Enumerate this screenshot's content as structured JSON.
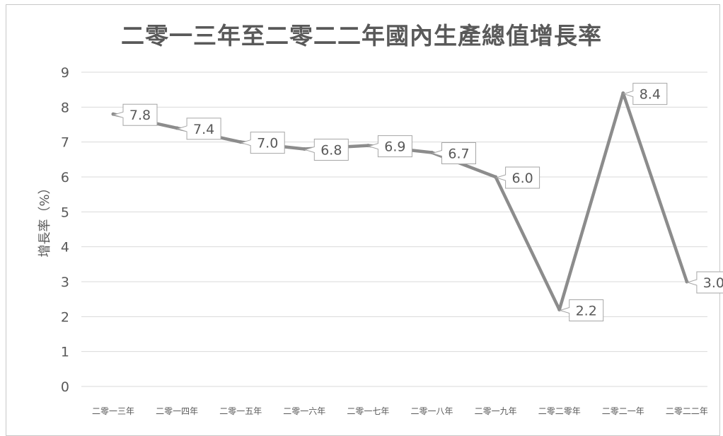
{
  "chart_data": {
    "type": "line",
    "title": "二零一三年至二零二二年國內生產總值增長率",
    "xlabel": "",
    "ylabel": "增長率（%）",
    "categories": [
      "二零一三年",
      "二零一四年",
      "二零一五年",
      "二零一六年",
      "二零一七年",
      "二零一八年",
      "二零一九年",
      "二零二零年",
      "二零二一年",
      "二零二二年"
    ],
    "series": [
      {
        "values": [
          7.8,
          7.4,
          7.0,
          6.8,
          6.9,
          6.7,
          6.0,
          2.2,
          8.4,
          3.0
        ]
      }
    ],
    "data_labels": [
      "7.8",
      "7.4",
      "7.0",
      "6.8",
      "6.9",
      "6.7",
      "6.0",
      "2.2",
      "8.4",
      "3.0"
    ],
    "yticks": [
      "0",
      "1",
      "2",
      "3",
      "4",
      "5",
      "6",
      "7",
      "8",
      "9"
    ],
    "ylim": [
      0,
      9
    ],
    "grid": true,
    "legend": "none",
    "colors": {
      "line": "#8c8c8c",
      "grid": "#d9d9d9",
      "text": "#595959"
    }
  }
}
